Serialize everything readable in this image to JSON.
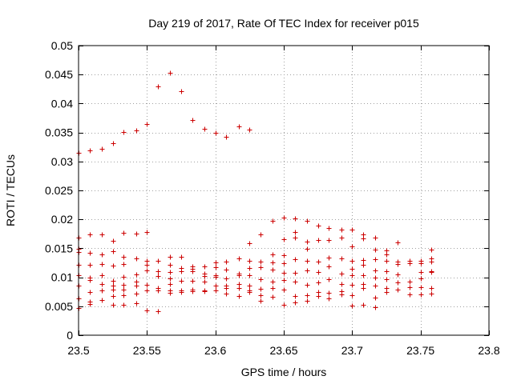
{
  "chart_data": {
    "type": "scatter",
    "title": "Day 219 of 2017, Rate Of TEC Index for receiver p015",
    "xlabel": "GPS time / hours",
    "ylabel": "ROTI / TECUs",
    "xlim": [
      23.5,
      23.8
    ],
    "ylim": [
      0,
      0.05
    ],
    "x_ticks": [
      23.5,
      23.55,
      23.6,
      23.65,
      23.7,
      23.75,
      23.8
    ],
    "x_tick_labels": [
      "23.5",
      "23.55",
      "23.6",
      "23.65",
      "23.7",
      "23.75",
      "23.8"
    ],
    "y_ticks": [
      0,
      0.005,
      0.01,
      0.015,
      0.02,
      0.025,
      0.03,
      0.035,
      0.04,
      0.045,
      0.05
    ],
    "y_tick_labels": [
      "0",
      "0.005",
      "0.01",
      "0.015",
      "0.02",
      "0.025",
      "0.03",
      "0.035",
      "0.04",
      "0.045",
      "0.05"
    ],
    "grid": true,
    "marker": "+",
    "color": "#cc0000",
    "series": [
      {
        "name": "ROTI",
        "points": [
          [
            23.5,
            0.0315
          ],
          [
            23.508,
            0.0319
          ],
          [
            23.517,
            0.0322
          ],
          [
            23.525,
            0.0331
          ],
          [
            23.533,
            0.0351
          ],
          [
            23.542,
            0.0354
          ],
          [
            23.55,
            0.0365
          ],
          [
            23.558,
            0.043
          ],
          [
            23.567,
            0.0453
          ],
          [
            23.575,
            0.0421
          ],
          [
            23.583,
            0.0372
          ],
          [
            23.592,
            0.0357
          ],
          [
            23.6,
            0.035
          ],
          [
            23.608,
            0.0343
          ],
          [
            23.617,
            0.036
          ],
          [
            23.625,
            0.0355
          ],
          [
            23.5,
            0.0168
          ],
          [
            23.5,
            0.0149
          ],
          [
            23.5,
            0.0143
          ],
          [
            23.5,
            0.0122
          ],
          [
            23.5,
            0.0103
          ],
          [
            23.5,
            0.0086
          ],
          [
            23.5,
            0.0064
          ],
          [
            23.5,
            0.0047
          ],
          [
            23.508,
            0.0174
          ],
          [
            23.508,
            0.0142
          ],
          [
            23.508,
            0.0122
          ],
          [
            23.508,
            0.0099
          ],
          [
            23.508,
            0.0095
          ],
          [
            23.508,
            0.0074
          ],
          [
            23.508,
            0.0058
          ],
          [
            23.508,
            0.0054
          ],
          [
            23.517,
            0.0174
          ],
          [
            23.517,
            0.014
          ],
          [
            23.517,
            0.0123
          ],
          [
            23.517,
            0.0104
          ],
          [
            23.517,
            0.0089
          ],
          [
            23.517,
            0.0077
          ],
          [
            23.517,
            0.0061
          ],
          [
            23.525,
            0.0163
          ],
          [
            23.525,
            0.0145
          ],
          [
            23.525,
            0.012
          ],
          [
            23.525,
            0.0094
          ],
          [
            23.525,
            0.0086
          ],
          [
            23.525,
            0.0079
          ],
          [
            23.525,
            0.0067
          ],
          [
            23.525,
            0.0053
          ],
          [
            23.533,
            0.0177
          ],
          [
            23.533,
            0.0135
          ],
          [
            23.533,
            0.0123
          ],
          [
            23.533,
            0.0101
          ],
          [
            23.533,
            0.0087
          ],
          [
            23.533,
            0.0079
          ],
          [
            23.533,
            0.0069
          ],
          [
            23.533,
            0.0052
          ],
          [
            23.542,
            0.0176
          ],
          [
            23.542,
            0.0132
          ],
          [
            23.542,
            0.0105
          ],
          [
            23.542,
            0.0093
          ],
          [
            23.542,
            0.0085
          ],
          [
            23.542,
            0.0072
          ],
          [
            23.542,
            0.0055
          ],
          [
            23.55,
            0.0178
          ],
          [
            23.55,
            0.0128
          ],
          [
            23.55,
            0.0121
          ],
          [
            23.55,
            0.0112
          ],
          [
            23.55,
            0.0087
          ],
          [
            23.55,
            0.0077
          ],
          [
            23.55,
            0.0043
          ],
          [
            23.558,
            0.0129
          ],
          [
            23.558,
            0.0111
          ],
          [
            23.558,
            0.0102
          ],
          [
            23.558,
            0.0081
          ],
          [
            23.558,
            0.0077
          ],
          [
            23.558,
            0.0041
          ],
          [
            23.567,
            0.0136
          ],
          [
            23.567,
            0.0121
          ],
          [
            23.567,
            0.0109
          ],
          [
            23.567,
            0.0098
          ],
          [
            23.567,
            0.0089
          ],
          [
            23.567,
            0.0077
          ],
          [
            23.567,
            0.0073
          ],
          [
            23.575,
            0.0135
          ],
          [
            23.575,
            0.0116
          ],
          [
            23.575,
            0.011
          ],
          [
            23.575,
            0.0094
          ],
          [
            23.575,
            0.0078
          ],
          [
            23.575,
            0.0074
          ],
          [
            23.583,
            0.0119
          ],
          [
            23.583,
            0.0114
          ],
          [
            23.583,
            0.0111
          ],
          [
            23.583,
            0.0094
          ],
          [
            23.583,
            0.0079
          ],
          [
            23.583,
            0.0076
          ],
          [
            23.592,
            0.0119
          ],
          [
            23.592,
            0.0107
          ],
          [
            23.592,
            0.0102
          ],
          [
            23.592,
            0.0093
          ],
          [
            23.592,
            0.0078
          ],
          [
            23.592,
            0.0076
          ],
          [
            23.6,
            0.0126
          ],
          [
            23.6,
            0.0117
          ],
          [
            23.6,
            0.0103
          ],
          [
            23.6,
            0.0101
          ],
          [
            23.6,
            0.0085
          ],
          [
            23.6,
            0.0077
          ],
          [
            23.608,
            0.0127
          ],
          [
            23.608,
            0.0113
          ],
          [
            23.608,
            0.0098
          ],
          [
            23.608,
            0.0085
          ],
          [
            23.608,
            0.0081
          ],
          [
            23.608,
            0.0072
          ],
          [
            23.617,
            0.0133
          ],
          [
            23.617,
            0.0106
          ],
          [
            23.617,
            0.0104
          ],
          [
            23.617,
            0.0089
          ],
          [
            23.617,
            0.0081
          ],
          [
            23.617,
            0.0067
          ],
          [
            23.625,
            0.0159
          ],
          [
            23.625,
            0.0129
          ],
          [
            23.625,
            0.0116
          ],
          [
            23.625,
            0.0104
          ],
          [
            23.625,
            0.0086
          ],
          [
            23.625,
            0.0077
          ],
          [
            23.625,
            0.0074
          ],
          [
            23.633,
            0.0174
          ],
          [
            23.633,
            0.0127
          ],
          [
            23.633,
            0.0117
          ],
          [
            23.633,
            0.0097
          ],
          [
            23.633,
            0.008
          ],
          [
            23.633,
            0.0069
          ],
          [
            23.633,
            0.006
          ],
          [
            23.642,
            0.0197
          ],
          [
            23.642,
            0.0139
          ],
          [
            23.642,
            0.0126
          ],
          [
            23.642,
            0.0113
          ],
          [
            23.642,
            0.0093
          ],
          [
            23.642,
            0.0081
          ],
          [
            23.642,
            0.0066
          ],
          [
            23.65,
            0.0203
          ],
          [
            23.65,
            0.0166
          ],
          [
            23.65,
            0.0138
          ],
          [
            23.65,
            0.0124
          ],
          [
            23.65,
            0.0108
          ],
          [
            23.65,
            0.0095
          ],
          [
            23.65,
            0.0079
          ],
          [
            23.65,
            0.0052
          ],
          [
            23.658,
            0.0202
          ],
          [
            23.658,
            0.0178
          ],
          [
            23.658,
            0.0169
          ],
          [
            23.658,
            0.0131
          ],
          [
            23.658,
            0.0108
          ],
          [
            23.658,
            0.0093
          ],
          [
            23.658,
            0.0068
          ],
          [
            23.658,
            0.0056
          ],
          [
            23.667,
            0.0197
          ],
          [
            23.667,
            0.0162
          ],
          [
            23.667,
            0.0149
          ],
          [
            23.667,
            0.0128
          ],
          [
            23.667,
            0.0112
          ],
          [
            23.667,
            0.0087
          ],
          [
            23.667,
            0.0069
          ],
          [
            23.667,
            0.0059
          ],
          [
            23.675,
            0.0189
          ],
          [
            23.675,
            0.0164
          ],
          [
            23.675,
            0.0127
          ],
          [
            23.675,
            0.0109
          ],
          [
            23.675,
            0.0091
          ],
          [
            23.675,
            0.0075
          ],
          [
            23.675,
            0.0068
          ],
          [
            23.683,
            0.0185
          ],
          [
            23.683,
            0.0164
          ],
          [
            23.683,
            0.0134
          ],
          [
            23.683,
            0.0119
          ],
          [
            23.683,
            0.0096
          ],
          [
            23.683,
            0.0073
          ],
          [
            23.683,
            0.0063
          ],
          [
            23.692,
            0.0182
          ],
          [
            23.692,
            0.0168
          ],
          [
            23.692,
            0.0132
          ],
          [
            23.692,
            0.0107
          ],
          [
            23.692,
            0.0088
          ],
          [
            23.692,
            0.0076
          ],
          [
            23.692,
            0.007
          ],
          [
            23.7,
            0.0183
          ],
          [
            23.7,
            0.0154
          ],
          [
            23.7,
            0.0128
          ],
          [
            23.7,
            0.0115
          ],
          [
            23.7,
            0.0103
          ],
          [
            23.7,
            0.0087
          ],
          [
            23.7,
            0.0069
          ],
          [
            23.7,
            0.0051
          ],
          [
            23.708,
            0.0174
          ],
          [
            23.708,
            0.0167
          ],
          [
            23.708,
            0.013
          ],
          [
            23.708,
            0.0121
          ],
          [
            23.708,
            0.0103
          ],
          [
            23.708,
            0.0088
          ],
          [
            23.708,
            0.0082
          ],
          [
            23.708,
            0.0053
          ],
          [
            23.717,
            0.0169
          ],
          [
            23.717,
            0.0148
          ],
          [
            23.717,
            0.0131
          ],
          [
            23.717,
            0.0112
          ],
          [
            23.717,
            0.0099
          ],
          [
            23.717,
            0.0085
          ],
          [
            23.717,
            0.0065
          ],
          [
            23.717,
            0.0049
          ],
          [
            23.725,
            0.0147
          ],
          [
            23.725,
            0.0139
          ],
          [
            23.725,
            0.0128
          ],
          [
            23.725,
            0.0111
          ],
          [
            23.725,
            0.0096
          ],
          [
            23.725,
            0.0082
          ],
          [
            23.725,
            0.0075
          ],
          [
            23.733,
            0.016
          ],
          [
            23.733,
            0.0127
          ],
          [
            23.733,
            0.0123
          ],
          [
            23.733,
            0.0105
          ],
          [
            23.733,
            0.0091
          ],
          [
            23.733,
            0.0079
          ],
          [
            23.742,
            0.0128
          ],
          [
            23.742,
            0.0124
          ],
          [
            23.742,
            0.0093
          ],
          [
            23.742,
            0.0083
          ],
          [
            23.742,
            0.007
          ],
          [
            23.75,
            0.0128
          ],
          [
            23.75,
            0.0125
          ],
          [
            23.75,
            0.0109
          ],
          [
            23.75,
            0.0098
          ],
          [
            23.75,
            0.0083
          ],
          [
            23.75,
            0.007
          ],
          [
            23.758,
            0.0148
          ],
          [
            23.758,
            0.0132
          ],
          [
            23.758,
            0.0127
          ],
          [
            23.758,
            0.0111
          ],
          [
            23.758,
            0.0109
          ],
          [
            23.758,
            0.0081
          ],
          [
            23.758,
            0.0072
          ]
        ]
      }
    ]
  }
}
